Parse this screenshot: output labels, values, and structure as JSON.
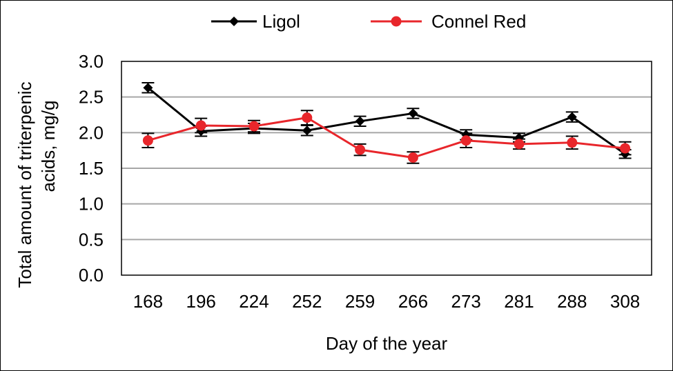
{
  "chart_data": {
    "type": "line",
    "xlabel": "Day of the year",
    "ylabel_line1": "Total amount of triterpenic",
    "ylabel_line2": "acids, mg/g",
    "categories": [
      "168",
      "196",
      "224",
      "252",
      "259",
      "266",
      "273",
      "281",
      "288",
      "308"
    ],
    "ylim": [
      0,
      3.0
    ],
    "yticks": [
      "0.0",
      "0.5",
      "1.0",
      "1.5",
      "2.0",
      "2.5",
      "3.0"
    ],
    "grid": true,
    "legend_position": "top",
    "series": [
      {
        "name": "Ligol",
        "color": "#000000",
        "marker": "diamond",
        "values": [
          2.63,
          2.02,
          2.06,
          2.03,
          2.16,
          2.27,
          1.97,
          1.93,
          2.22,
          1.7
        ],
        "errors": [
          0.07,
          0.07,
          0.07,
          0.07,
          0.07,
          0.07,
          0.07,
          0.06,
          0.07,
          0.06
        ]
      },
      {
        "name": "Connel Red",
        "color": "#e8262b",
        "marker": "circle",
        "values": [
          1.89,
          2.1,
          2.09,
          2.21,
          1.76,
          1.65,
          1.89,
          1.84,
          1.86,
          1.78
        ],
        "errors": [
          0.1,
          0.1,
          0.08,
          0.1,
          0.08,
          0.08,
          0.1,
          0.07,
          0.09,
          0.09
        ]
      }
    ]
  }
}
